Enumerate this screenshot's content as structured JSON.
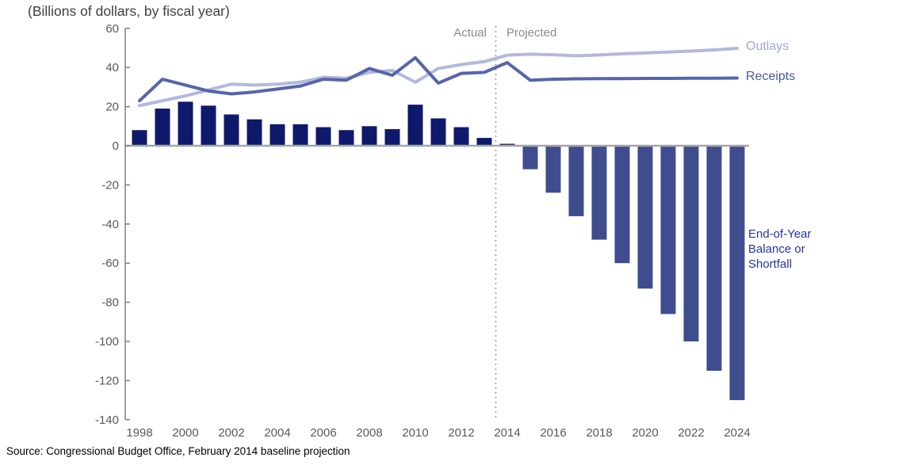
{
  "title": "(Billions of dollars, by fiscal year)",
  "source": "Source: Congressional Budget Office, February 2014 baseline projection",
  "labels": {
    "actual": "Actual",
    "projected": "Projected",
    "outlays": "Outlays",
    "receipts": "Receipts",
    "balance_line1": "End-of-Year",
    "balance_line2": "Balance or",
    "balance_line3": "Shortfall"
  },
  "colors": {
    "bar_positive": "#0f196b",
    "bar_negative": "#3f4d8f",
    "outlays_line": "#b2b9dc",
    "receipts_line": "#5665ab",
    "outlays_label": "#9fa8d5",
    "receipts_label": "#4758a8",
    "balance_label": "#2334a0",
    "axis": "#808080",
    "zero_line": "#a6a6a6",
    "divider": "#9e9e9e",
    "tick_text": "#595959",
    "zone_text": "#8a8a8a"
  },
  "chart_data": {
    "type": "combo bar+line",
    "title": "(Billions of dollars, by fiscal year)",
    "xlabel": "Fiscal year",
    "ylabel": "Billions of dollars",
    "ylim": [
      -140,
      60
    ],
    "ytick_step": 20,
    "grid": false,
    "legend_position": "right-of-lines",
    "divider_x": 2013.5,
    "zone_labels": {
      "left": "Actual",
      "right": "Projected"
    },
    "x": [
      1998,
      1999,
      2000,
      2001,
      2002,
      2003,
      2004,
      2005,
      2006,
      2007,
      2008,
      2009,
      2010,
      2011,
      2012,
      2013,
      2014,
      2015,
      2016,
      2017,
      2018,
      2019,
      2020,
      2021,
      2022,
      2023,
      2024
    ],
    "xticks": [
      1998,
      2000,
      2002,
      2004,
      2006,
      2008,
      2010,
      2012,
      2014,
      2016,
      2018,
      2020,
      2022,
      2024
    ],
    "series": [
      {
        "name": "Outlays",
        "type": "line",
        "color": "#b2b9dc",
        "values": [
          20.5,
          23,
          25.5,
          28.5,
          31.5,
          31,
          31.5,
          32.5,
          35,
          34.5,
          37.5,
          38.5,
          32.5,
          39.5,
          41.5,
          43,
          46.3,
          46.8,
          46.5,
          46,
          46.4,
          47,
          47.4,
          47.9,
          48.4,
          49,
          49.8
        ]
      },
      {
        "name": "Receipts",
        "type": "line",
        "color": "#5665ab",
        "values": [
          23,
          34,
          31,
          28,
          26.5,
          27.5,
          29,
          30.5,
          34,
          33.5,
          39.5,
          36,
          45,
          32,
          37,
          37.5,
          42.5,
          33.5,
          34,
          34.2,
          34.3,
          34.3,
          34.4,
          34.4,
          34.5,
          34.5,
          34.6
        ]
      },
      {
        "name": "End-of-Year Balance or Shortfall",
        "type": "bar",
        "color_positive": "#0f196b",
        "color_negative": "#3f4d8f",
        "values": [
          8,
          19,
          22.5,
          20.5,
          16,
          13.5,
          11,
          11,
          9.5,
          8,
          10,
          8.5,
          21,
          14,
          9.5,
          4,
          1,
          -12,
          -24,
          -36,
          -48,
          -60,
          -73,
          -86,
          -100,
          -115,
          -130
        ]
      }
    ]
  }
}
